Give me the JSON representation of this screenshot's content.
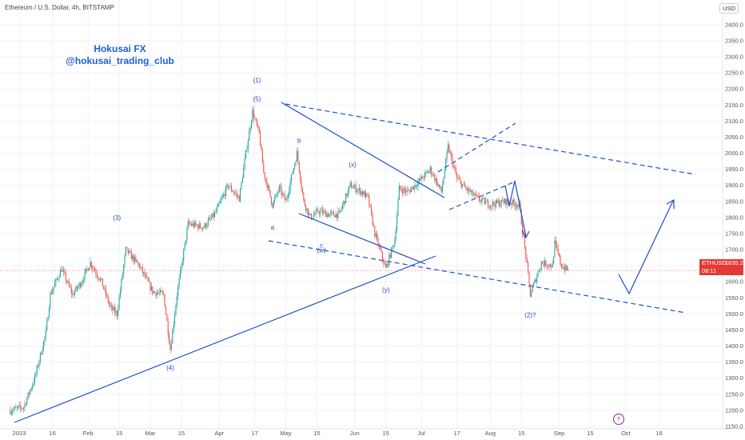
{
  "header": {
    "symbol_title": "Ethereum / U.S. Dollar, 4h, BITSTAMP",
    "currency": "USD"
  },
  "watermark": {
    "line1": "Hokusai FX",
    "line2": "@hokusai_trading_club"
  },
  "price_tag": {
    "symbol": "ETHUSD",
    "price": "1635.2",
    "countdown": "08:11"
  },
  "colors": {
    "up": "#26a69a",
    "down": "#ef5350",
    "annotation": "#1f4fc8",
    "price_line": "#e53935"
  },
  "chart_data": {
    "type": "candlestick",
    "timeframe": "4h",
    "ylim": [
      1140,
      2440
    ],
    "y_ticks": [
      1150,
      1200,
      1250,
      1300,
      1350,
      1400,
      1450,
      1500,
      1550,
      1600,
      1650,
      1700,
      1750,
      1800,
      1850,
      1900,
      1950,
      2000,
      2050,
      2100,
      2150,
      2200,
      2250,
      2300,
      2350,
      2400
    ],
    "y_tick_labels": [
      "1150.0",
      "1200.0",
      "1250.0",
      "1300.0",
      "1350.0",
      "1400.0",
      "1450.0",
      "1500.0",
      "1550.0",
      "1600.0",
      "1650.0",
      "1700.0",
      "1750.0",
      "1800.0",
      "1850.0",
      "1900.0",
      "1950.0",
      "2000.0",
      "2050.0",
      "2100.0",
      "2150.0",
      "2200.0",
      "2250.0",
      "2300.0",
      "2350.0",
      "2400.0"
    ],
    "x_ticks": [
      {
        "label": "2023",
        "date": "2023-01-01"
      },
      {
        "label": "16",
        "date": "2023-01-16"
      },
      {
        "label": "Feb",
        "date": "2023-02-01"
      },
      {
        "label": "15",
        "date": "2023-02-15"
      },
      {
        "label": "Mar",
        "date": "2023-03-01"
      },
      {
        "label": "15",
        "date": "2023-03-15"
      },
      {
        "label": "Apr",
        "date": "2023-04-01"
      },
      {
        "label": "17",
        "date": "2023-04-17"
      },
      {
        "label": "May",
        "date": "2023-05-01"
      },
      {
        "label": "15",
        "date": "2023-05-15"
      },
      {
        "label": "Jun",
        "date": "2023-06-01"
      },
      {
        "label": "15",
        "date": "2023-06-15"
      },
      {
        "label": "Jul",
        "date": "2023-07-01"
      },
      {
        "label": "17",
        "date": "2023-07-17"
      },
      {
        "label": "Aug",
        "date": "2023-08-01"
      },
      {
        "label": "15",
        "date": "2023-08-15"
      },
      {
        "label": "Sep",
        "date": "2023-09-01"
      },
      {
        "label": "15",
        "date": "2023-09-15"
      },
      {
        "label": "Oct",
        "date": "2023-10-01"
      },
      {
        "label": "16",
        "date": "2023-10-16"
      }
    ],
    "current_price": 1635.2,
    "price_path": [
      [
        "2022-12-28",
        1200
      ],
      [
        "2023-01-03",
        1210
      ],
      [
        "2023-01-08",
        1300
      ],
      [
        "2023-01-13",
        1440
      ],
      [
        "2023-01-15",
        1560
      ],
      [
        "2023-01-20",
        1640
      ],
      [
        "2023-01-25",
        1560
      ],
      [
        "2023-01-29",
        1600
      ],
      [
        "2023-02-02",
        1660
      ],
      [
        "2023-02-07",
        1600
      ],
      [
        "2023-02-11",
        1520
      ],
      [
        "2023-02-14",
        1500
      ],
      [
        "2023-02-18",
        1700
      ],
      [
        "2023-02-24",
        1650
      ],
      [
        "2023-03-02",
        1570
      ],
      [
        "2023-03-07",
        1560
      ],
      [
        "2023-03-10",
        1390
      ],
      [
        "2023-03-13",
        1560
      ],
      [
        "2023-03-18",
        1780
      ],
      [
        "2023-03-25",
        1770
      ],
      [
        "2023-03-30",
        1810
      ],
      [
        "2023-04-05",
        1900
      ],
      [
        "2023-04-10",
        1860
      ],
      [
        "2023-04-13",
        2000
      ],
      [
        "2023-04-16",
        2130
      ],
      [
        "2023-04-19",
        2060
      ],
      [
        "2023-04-21",
        1940
      ],
      [
        "2023-04-25",
        1840
      ],
      [
        "2023-04-28",
        1890
      ],
      [
        "2023-05-01",
        1850
      ],
      [
        "2023-05-06",
        2000
      ],
      [
        "2023-05-09",
        1850
      ],
      [
        "2023-05-12",
        1800
      ],
      [
        "2023-05-16",
        1820
      ],
      [
        "2023-05-20",
        1810
      ],
      [
        "2023-05-25",
        1810
      ],
      [
        "2023-05-30",
        1900
      ],
      [
        "2023-06-04",
        1880
      ],
      [
        "2023-06-07",
        1860
      ],
      [
        "2023-06-10",
        1750
      ],
      [
        "2023-06-15",
        1640
      ],
      [
        "2023-06-19",
        1730
      ],
      [
        "2023-06-21",
        1890
      ],
      [
        "2023-06-25",
        1880
      ],
      [
        "2023-07-01",
        1920
      ],
      [
        "2023-07-05",
        1950
      ],
      [
        "2023-07-10",
        1880
      ],
      [
        "2023-07-13",
        2020
      ],
      [
        "2023-07-17",
        1920
      ],
      [
        "2023-07-21",
        1890
      ],
      [
        "2023-07-26",
        1860
      ],
      [
        "2023-08-01",
        1840
      ],
      [
        "2023-08-08",
        1850
      ],
      [
        "2023-08-14",
        1840
      ],
      [
        "2023-08-17",
        1680
      ],
      [
        "2023-08-19",
        1560
      ],
      [
        "2023-08-24",
        1660
      ],
      [
        "2023-08-29",
        1650
      ],
      [
        "2023-08-30",
        1720
      ],
      [
        "2023-09-02",
        1650
      ],
      [
        "2023-09-05",
        1635
      ]
    ],
    "wave_labels": [
      {
        "text": "(1)",
        "date": "2023-04-18",
        "price": 2220
      },
      {
        "text": "(5)",
        "date": "2023-04-18",
        "price": 2162
      },
      {
        "text": "(3)",
        "date": "2023-02-14",
        "price": 1792
      },
      {
        "text": "(4)",
        "date": "2023-03-10",
        "price": 1325
      },
      {
        "text": "b",
        "date": "2023-05-07",
        "price": 2033
      },
      {
        "text": "(x)",
        "date": "2023-05-31",
        "price": 1958
      },
      {
        "text": "a",
        "date": "2023-04-25",
        "price": 1762
      },
      {
        "text": "c",
        "date": "2023-05-17",
        "price": 1707
      },
      {
        "text": "(w)",
        "date": "2023-05-17",
        "price": 1692
      },
      {
        "text": "(y)",
        "date": "2023-06-15",
        "price": 1568
      },
      {
        "text": "(2)?",
        "date": "2023-08-19",
        "price": 1490
      }
    ]
  }
}
